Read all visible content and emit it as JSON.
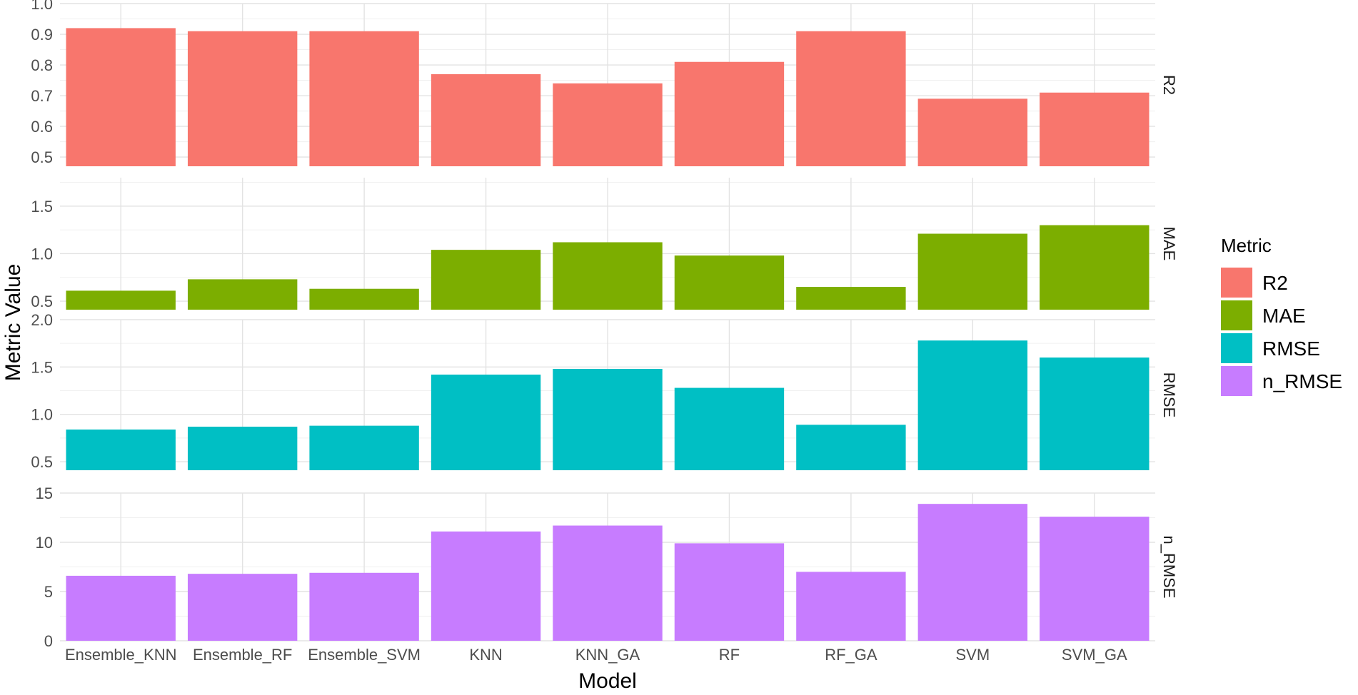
{
  "chart_data": {
    "type": "bar",
    "categories": [
      "Ensemble_KNN",
      "Ensemble_RF",
      "Ensemble_SVM",
      "KNN",
      "KNN_GA",
      "RF",
      "RF_GA",
      "SVM",
      "SVM_GA"
    ],
    "xlabel": "Model",
    "ylabel": "Metric Value",
    "grid": true,
    "legend": {
      "title": "Metric",
      "position": "right",
      "entries": [
        "R2",
        "MAE",
        "RMSE",
        "n_RMSE"
      ]
    },
    "series": [
      {
        "name": "R2",
        "color": "#F8766D",
        "values": [
          0.92,
          0.91,
          0.91,
          0.77,
          0.74,
          0.81,
          0.91,
          0.69,
          0.71
        ],
        "ylim": [
          0.47,
          1.0
        ],
        "yticks": [
          "0.5",
          "0.6",
          "0.7",
          "0.8",
          "0.9",
          "1.0"
        ]
      },
      {
        "name": "MAE",
        "color": "#7CAE00",
        "values": [
          0.61,
          0.73,
          0.63,
          1.04,
          1.12,
          0.98,
          0.65,
          1.21,
          1.3
        ],
        "ylim": [
          0.41,
          1.8
        ],
        "yticks": [
          "0.5",
          "1.0",
          "1.5"
        ]
      },
      {
        "name": "RMSE",
        "color": "#00BFC4",
        "values": [
          0.84,
          0.87,
          0.88,
          1.42,
          1.48,
          1.28,
          0.89,
          1.78,
          1.6
        ],
        "ylim": [
          0.41,
          2.0
        ],
        "yticks": [
          "0.5",
          "1.0",
          "1.5",
          "2.0"
        ]
      },
      {
        "name": "n_RMSE",
        "color": "#C77CFF",
        "values": [
          6.6,
          6.8,
          6.9,
          11.1,
          11.7,
          9.9,
          7.0,
          13.9,
          12.6
        ],
        "ylim": [
          0,
          15
        ],
        "yticks": [
          "0",
          "5",
          "10",
          "15"
        ]
      }
    ]
  }
}
